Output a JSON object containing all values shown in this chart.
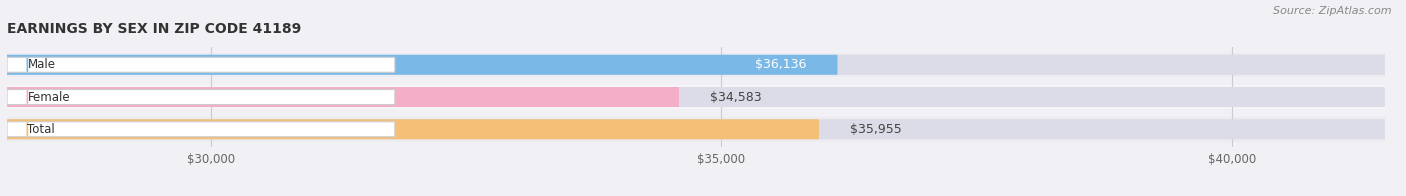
{
  "title": "EARNINGS BY SEX IN ZIP CODE 41189",
  "source": "Source: ZipAtlas.com",
  "categories": [
    "Male",
    "Female",
    "Total"
  ],
  "values": [
    36136,
    34583,
    35955
  ],
  "bar_colors": [
    "#7ab8e8",
    "#f4aec8",
    "#f5bf78"
  ],
  "bar_row_bg": [
    "#ebebf0",
    "#f5f5f8",
    "#ebebf0"
  ],
  "bar_bg_color": "#dcdce8",
  "value_labels": [
    "$36,136",
    "$34,583",
    "$35,955"
  ],
  "value_label_inside": [
    true,
    false,
    false
  ],
  "value_label_colors_inside": [
    "white",
    "#555555",
    "#555555"
  ],
  "xmin": 28000,
  "xmax": 41500,
  "xticks": [
    30000,
    35000,
    40000
  ],
  "xtick_labels": [
    "$30,000",
    "$35,000",
    "$40,000"
  ],
  "figsize": [
    14.06,
    1.96
  ],
  "dpi": 100,
  "background_color": "#f0f0f5",
  "bar_height": 0.62,
  "bar_gap": 0.15
}
